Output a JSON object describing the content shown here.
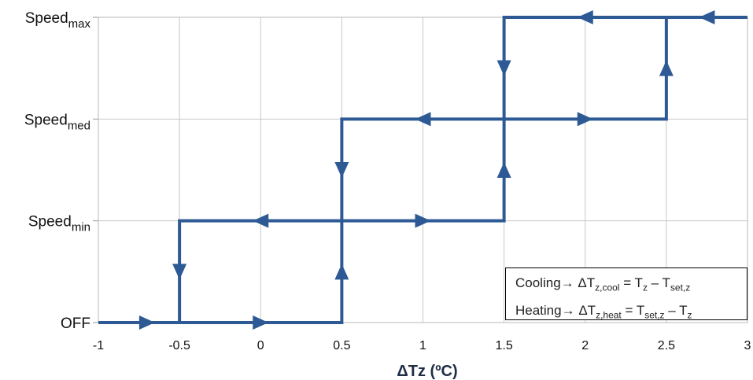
{
  "chart_data": {
    "type": "line",
    "title": "",
    "xlabel": "ΔTz (ºC)",
    "ylabel": "",
    "xlim": [
      -1,
      3
    ],
    "x_ticks": [
      "-1",
      "-0.5",
      "0",
      "0.5",
      "1",
      "1.5",
      "2",
      "2.5",
      "3"
    ],
    "y_levels": [
      {
        "base": "OFF",
        "sub": ""
      },
      {
        "base": "Speed",
        "sub": "min"
      },
      {
        "base": "Speed",
        "sub": "med"
      },
      {
        "base": "Speed",
        "sub": "max"
      }
    ],
    "grid": true,
    "line_color": "#2d5a94",
    "series": [
      {
        "points": [
          [
            -1,
            0
          ],
          [
            0.5,
            0
          ],
          [
            0.5,
            1
          ],
          [
            1.5,
            1
          ],
          [
            1.5,
            2
          ],
          [
            2.5,
            2
          ],
          [
            2.5,
            3
          ],
          [
            3,
            3
          ]
        ],
        "arrows": [
          [
            -0.7,
            0,
            "right"
          ],
          [
            0,
            0,
            "right"
          ],
          [
            0.5,
            0.5,
            "up"
          ],
          [
            1,
            1,
            "right"
          ],
          [
            1.5,
            1.5,
            "up"
          ],
          [
            2,
            2,
            "right"
          ],
          [
            2.5,
            2.5,
            "up"
          ]
        ]
      },
      {
        "points": [
          [
            3,
            3
          ],
          [
            1.5,
            3
          ],
          [
            1.5,
            2
          ],
          [
            0.5,
            2
          ],
          [
            0.5,
            1
          ],
          [
            -0.5,
            1
          ],
          [
            -0.5,
            0
          ]
        ],
        "arrows": [
          [
            2.75,
            3,
            "left"
          ],
          [
            2,
            3,
            "left"
          ],
          [
            1.5,
            2.5,
            "down"
          ],
          [
            1,
            2,
            "left"
          ],
          [
            0.5,
            1.5,
            "down"
          ],
          [
            0,
            1,
            "left"
          ],
          [
            -0.5,
            0.5,
            "down"
          ]
        ]
      }
    ]
  },
  "legend": {
    "cooling": {
      "prefix": "Cooling→ ΔT",
      "sub1": "z,cool",
      "mid": " = T",
      "sub2": "z",
      "mid2": " – T",
      "sub3": "set,z",
      "suffix": ""
    },
    "heating": {
      "prefix": "Heating→ ΔT",
      "sub1": "z,heat",
      "mid": " = T",
      "sub2": "set,z",
      "mid2": " – T",
      "sub3": "z",
      "suffix": ""
    }
  }
}
